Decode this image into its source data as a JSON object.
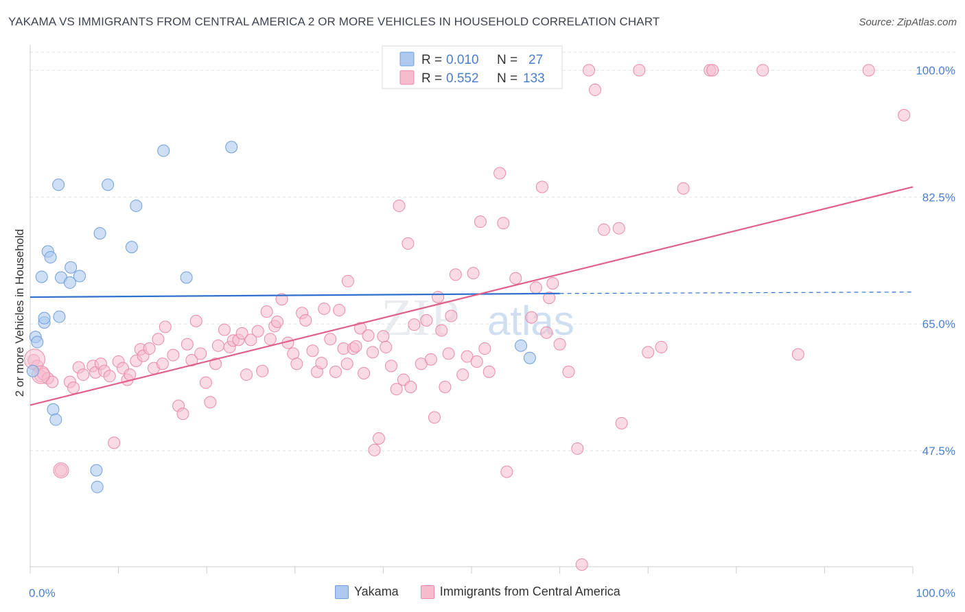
{
  "title": "YAKAMA VS IMMIGRANTS FROM CENTRAL AMERICA 2 OR MORE VEHICLES IN HOUSEHOLD CORRELATION CHART",
  "source": "Source: ZipAtlas.com",
  "watermark": {
    "zip": "ZIP",
    "atlas": "atlas"
  },
  "colors": {
    "blue_fill": "#adc9ef",
    "blue_stroke": "#6f9fd8",
    "blue_line": "#2f6fcf",
    "pink_fill": "#f6bccd",
    "pink_stroke": "#e98aa8",
    "pink_line": "#e0608a",
    "tick_label": "#4a7fd0",
    "grid": "#dde3ea"
  },
  "legend_box": {
    "rows": [
      {
        "r_label": "R =",
        "r_value": "0.010",
        "n_label": "N =",
        "n_value": "27"
      },
      {
        "r_label": "R =",
        "r_value": "0.552",
        "n_label": "N =",
        "n_value": "133"
      }
    ]
  },
  "legend_bottom": {
    "items": [
      "Yakama",
      "Immigrants from Central America"
    ]
  },
  "chart_data": {
    "type": "scatter",
    "title": "YAKAMA VS IMMIGRANTS FROM CENTRAL AMERICA 2 OR MORE VEHICLES IN HOUSEHOLD CORRELATION CHART",
    "xlabel": "",
    "ylabel": "2 or more Vehicles in Household",
    "xlim": [
      0,
      100
    ],
    "ylim": [
      31.5,
      102.5
    ],
    "x_tick_labels": [
      "0.0%",
      "100.0%"
    ],
    "y_ticks": [
      47.5,
      65.0,
      82.5,
      100.0
    ],
    "y_tick_labels": [
      "47.5%",
      "65.0%",
      "82.5%",
      "100.0%"
    ],
    "grid": true,
    "legend_position": "top-center",
    "series": [
      {
        "name": "Yakama",
        "trend": {
          "x": [
            0,
            60
          ],
          "y": [
            68.7,
            69.2
          ],
          "dashed_to_x": 100,
          "dashed_to_y": 69.4
        },
        "points": [
          [
            0.3,
            58.5
          ],
          [
            0.6,
            63.2
          ],
          [
            0.8,
            62.5
          ],
          [
            1.3,
            71.5
          ],
          [
            1.6,
            65.2
          ],
          [
            1.6,
            65.8
          ],
          [
            2.0,
            75.0
          ],
          [
            2.3,
            74.2
          ],
          [
            2.6,
            53.2
          ],
          [
            2.9,
            51.8
          ],
          [
            3.2,
            84.2
          ],
          [
            3.3,
            66.0
          ],
          [
            3.5,
            71.4
          ],
          [
            4.5,
            70.7
          ],
          [
            4.6,
            72.8
          ],
          [
            5.6,
            71.6
          ],
          [
            7.5,
            44.8
          ],
          [
            7.6,
            42.5
          ],
          [
            7.9,
            77.5
          ],
          [
            8.8,
            84.2
          ],
          [
            11.5,
            75.6
          ],
          [
            12.0,
            81.3
          ],
          [
            15.1,
            88.9
          ],
          [
            17.7,
            71.4
          ],
          [
            22.8,
            89.4
          ],
          [
            55.6,
            62.0
          ],
          [
            56.6,
            60.3
          ]
        ]
      },
      {
        "name": "Immigrants from Central America",
        "trend": {
          "x": [
            0,
            100
          ],
          "y": [
            53.8,
            83.9
          ]
        },
        "points": [
          [
            0.4,
            60.0
          ],
          [
            0.8,
            59.2
          ],
          [
            1.2,
            57.8
          ],
          [
            1.5,
            58.1
          ],
          [
            2.0,
            57.5
          ],
          [
            2.5,
            57.0
          ],
          [
            3.5,
            44.8
          ],
          [
            4.5,
            57.0
          ],
          [
            4.9,
            56.2
          ],
          [
            5.5,
            59.0
          ],
          [
            6.0,
            58.0
          ],
          [
            7.1,
            59.2
          ],
          [
            7.4,
            58.3
          ],
          [
            8.0,
            59.5
          ],
          [
            8.4,
            58.5
          ],
          [
            9.0,
            57.8
          ],
          [
            9.5,
            48.6
          ],
          [
            10.0,
            59.8
          ],
          [
            10.5,
            58.9
          ],
          [
            11.0,
            57.3
          ],
          [
            11.3,
            58.0
          ],
          [
            12.0,
            59.9
          ],
          [
            12.5,
            61.5
          ],
          [
            12.8,
            60.6
          ],
          [
            13.5,
            61.6
          ],
          [
            14.0,
            58.9
          ],
          [
            14.5,
            62.9
          ],
          [
            15.0,
            59.5
          ],
          [
            15.3,
            64.6
          ],
          [
            16.2,
            60.7
          ],
          [
            16.8,
            53.7
          ],
          [
            17.3,
            52.6
          ],
          [
            17.8,
            62.2
          ],
          [
            18.3,
            60.0
          ],
          [
            18.8,
            65.4
          ],
          [
            19.3,
            60.9
          ],
          [
            19.9,
            56.9
          ],
          [
            20.4,
            54.2
          ],
          [
            21.0,
            59.5
          ],
          [
            21.3,
            62.0
          ],
          [
            22.0,
            64.2
          ],
          [
            22.6,
            61.8
          ],
          [
            23.0,
            62.7
          ],
          [
            23.6,
            62.8
          ],
          [
            24.0,
            63.7
          ],
          [
            24.5,
            58.0
          ],
          [
            25.0,
            62.8
          ],
          [
            25.8,
            64.0
          ],
          [
            26.3,
            58.5
          ],
          [
            26.8,
            66.7
          ],
          [
            27.2,
            62.9
          ],
          [
            27.7,
            64.7
          ],
          [
            28.0,
            65.3
          ],
          [
            28.5,
            68.4
          ],
          [
            29.2,
            62.4
          ],
          [
            29.8,
            60.9
          ],
          [
            30.2,
            59.5
          ],
          [
            30.8,
            66.5
          ],
          [
            31.2,
            65.5
          ],
          [
            32.0,
            61.3
          ],
          [
            32.5,
            58.4
          ],
          [
            33.0,
            59.6
          ],
          [
            33.3,
            67.1
          ],
          [
            34.0,
            62.9
          ],
          [
            34.6,
            58.4
          ],
          [
            35.0,
            66.9
          ],
          [
            35.5,
            61.6
          ],
          [
            35.9,
            59.5
          ],
          [
            36.0,
            70.9
          ],
          [
            36.6,
            61.6
          ],
          [
            36.9,
            61.9
          ],
          [
            37.4,
            64.4
          ],
          [
            37.8,
            58.2
          ],
          [
            38.3,
            63.4
          ],
          [
            38.8,
            61.1
          ],
          [
            39.0,
            47.6
          ],
          [
            39.5,
            49.2
          ],
          [
            40.0,
            63.3
          ],
          [
            40.3,
            61.8
          ],
          [
            40.9,
            59.2
          ],
          [
            41.5,
            56.0
          ],
          [
            41.8,
            81.3
          ],
          [
            42.3,
            57.3
          ],
          [
            42.8,
            76.1
          ],
          [
            43.1,
            56.3
          ],
          [
            43.5,
            64.9
          ],
          [
            44.3,
            59.5
          ],
          [
            44.9,
            65.5
          ],
          [
            45.4,
            60.1
          ],
          [
            45.8,
            52.1
          ],
          [
            46.2,
            68.7
          ],
          [
            46.6,
            64.1
          ],
          [
            47.0,
            56.3
          ],
          [
            47.4,
            60.9
          ],
          [
            47.7,
            66.1
          ],
          [
            48.2,
            71.8
          ],
          [
            49.0,
            58.0
          ],
          [
            49.5,
            60.5
          ],
          [
            50.2,
            72.0
          ],
          [
            50.6,
            59.8
          ],
          [
            51.0,
            79.1
          ],
          [
            51.5,
            61.6
          ],
          [
            52.0,
            58.4
          ],
          [
            53.2,
            85.8
          ],
          [
            53.6,
            78.9
          ],
          [
            54.0,
            44.6
          ],
          [
            55.0,
            71.3
          ],
          [
            55.5,
            100.0
          ],
          [
            56.8,
            65.9
          ],
          [
            57.3,
            70.0
          ],
          [
            58.0,
            83.9
          ],
          [
            58.5,
            63.8
          ],
          [
            58.8,
            68.6
          ],
          [
            59.2,
            70.6
          ],
          [
            60.0,
            62.2
          ],
          [
            61.0,
            58.4
          ],
          [
            62.0,
            47.8
          ],
          [
            62.5,
            31.8
          ],
          [
            63.3,
            100.0
          ],
          [
            64.0,
            97.3
          ],
          [
            65.0,
            78.0
          ],
          [
            66.7,
            78.2
          ],
          [
            67.0,
            51.3
          ],
          [
            69.0,
            100.0
          ],
          [
            70.0,
            61.1
          ],
          [
            71.5,
            61.8
          ],
          [
            74.0,
            83.7
          ],
          [
            77.0,
            100.0
          ],
          [
            77.3,
            100.0
          ],
          [
            83.0,
            100.0
          ],
          [
            87.0,
            60.8
          ],
          [
            95.0,
            100.0
          ],
          [
            99.0,
            93.8
          ]
        ]
      }
    ]
  }
}
